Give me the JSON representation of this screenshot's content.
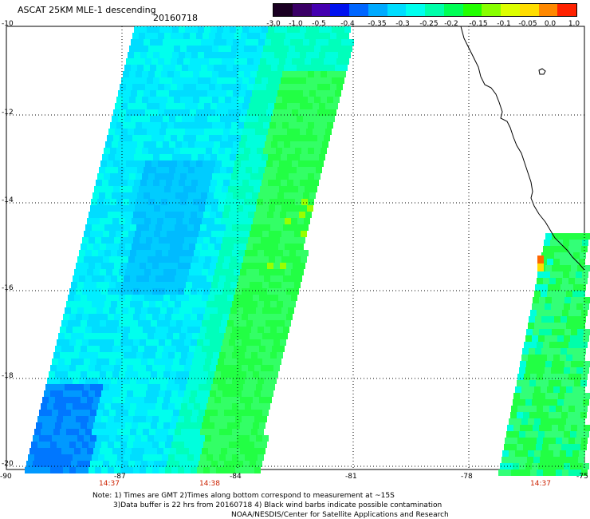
{
  "header": {
    "title": "ASCAT 25KM MLE-1 descending",
    "date": "20160718"
  },
  "colorbar": {
    "colors": [
      "#1a0022",
      "#3a0066",
      "#4400b0",
      "#0011ee",
      "#0066ff",
      "#00aaff",
      "#00ddff",
      "#00ffee",
      "#00ffaa",
      "#00ff55",
      "#22ff00",
      "#88ff00",
      "#ddff00",
      "#ffdd00",
      "#ff8800",
      "#ff2200"
    ],
    "labels": [
      "-3.0",
      "-1.0",
      "-0.5",
      "-0.4",
      "-0.35",
      "-0.3",
      "-0.25",
      "-0.2",
      "-0.15",
      "-0.1",
      "-0.05",
      "0.0",
      "1.0"
    ]
  },
  "axes": {
    "y_labels": [
      "-10",
      "-12",
      "-14",
      "-16",
      "-18",
      "-20"
    ],
    "x_labels": [
      "-90",
      "-87",
      "-84",
      "-81",
      "-78",
      "-75"
    ]
  },
  "times": [
    "14:37",
    "14:38",
    "14:37"
  ],
  "notes": [
    "Note: 1) Times are GMT 2)Times along bottom correspond to measurement at ~15S",
    "3)Data buffer is 22 hrs from 20160718 4) Black wind barbs indicate possible contamination",
    "NOAA/NESDIS/Center for Satellite Applications and Research"
  ]
}
